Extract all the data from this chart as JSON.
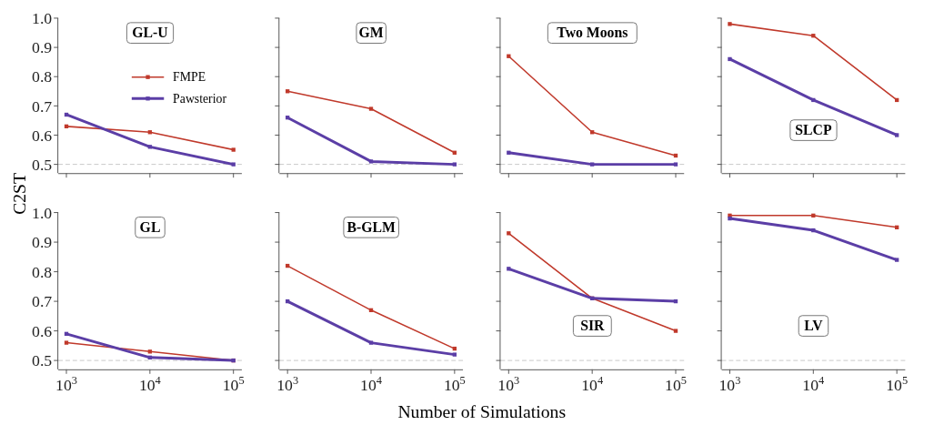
{
  "chart_data": [
    {
      "type": "line",
      "title": "GL-U",
      "ylabel": "C2ST",
      "annotations": [
        "Number of Simulations"
      ],
      "x": [
        1000,
        10000,
        100000
      ],
      "xlim": [
        800,
        126000
      ],
      "xticks": [
        {
          "value": 1000,
          "label": null
        },
        {
          "value": 10000,
          "label": null
        },
        {
          "value": 100000,
          "label": null
        }
      ],
      "ylim": [
        0.47,
        1.0
      ],
      "yticks": [
        0.5,
        0.6,
        0.7,
        0.8,
        0.9,
        {
          "value": 1.0,
          "label": "1.0"
        }
      ],
      "log": "x",
      "tick_labels": "y",
      "legend": "center",
      "marker": "square",
      "ref_lines": [
        {
          "axis": "y",
          "value": 0.5,
          "color": "#c8c8c8",
          "line_style": "dashed"
        }
      ],
      "series": [
        {
          "name": "FMPE",
          "color": "#c0392b",
          "values": [
            0.63,
            0.61,
            0.55
          ]
        },
        {
          "name": "Pawsterior",
          "color": "#5b3ea6",
          "values": [
            0.67,
            0.56,
            0.5
          ]
        }
      ]
    },
    {
      "type": "line",
      "title": "GM",
      "x": [
        1000,
        10000,
        100000
      ],
      "xlim": [
        800,
        126000
      ],
      "xticks": [
        {
          "value": 1000,
          "label": null
        },
        {
          "value": 10000,
          "label": null
        },
        {
          "value": 100000,
          "label": null
        }
      ],
      "ylim": [
        0.47,
        1.0
      ],
      "yticks": [
        0.5,
        0.6,
        0.7,
        0.8,
        0.9,
        1
      ],
      "log": "x",
      "tick_labels": false,
      "marker": "square",
      "ref_lines": [
        {
          "axis": "y",
          "value": 0.5,
          "color": "#c8c8c8",
          "line_style": "dashed"
        }
      ],
      "series": [
        {
          "color": "#c0392b",
          "values": [
            0.75,
            0.69,
            0.54
          ]
        },
        {
          "color": "#5b3ea6",
          "values": [
            0.66,
            0.51,
            0.5
          ]
        }
      ]
    },
    {
      "type": "line",
      "title": "Two Moons",
      "x": [
        1000,
        10000,
        100000
      ],
      "xlim": [
        800,
        126000
      ],
      "xticks": [
        {
          "value": 1000,
          "label": null
        },
        {
          "value": 10000,
          "label": null
        },
        {
          "value": 100000,
          "label": null
        }
      ],
      "ylim": [
        0.47,
        1.0
      ],
      "yticks": [
        0.5,
        0.6,
        0.7,
        0.8,
        0.9,
        1
      ],
      "log": "x",
      "tick_labels": false,
      "marker": "square",
      "ref_lines": [
        {
          "axis": "y",
          "value": 0.5,
          "color": "#c8c8c8",
          "line_style": "dashed"
        }
      ],
      "series": [
        {
          "color": "#c0392b",
          "values": [
            0.87,
            0.61,
            0.53
          ]
        },
        {
          "color": "#5b3ea6",
          "values": [
            0.54,
            0.5,
            0.5
          ]
        }
      ]
    },
    {
      "type": "line",
      "title": "SLCP",
      "x": [
        1000,
        10000,
        100000
      ],
      "xlim": [
        800,
        126000
      ],
      "xticks": [
        {
          "value": 1000,
          "label": null
        },
        {
          "value": 10000,
          "label": null
        },
        {
          "value": 100000,
          "label": null
        }
      ],
      "ylim": [
        0.47,
        1.0
      ],
      "yticks": [
        0.5,
        0.6,
        0.7,
        0.8,
        0.9,
        1
      ],
      "log": "x",
      "tick_labels": false,
      "marker": "square",
      "ref_lines": [
        {
          "axis": "y",
          "value": 0.5,
          "color": "#c8c8c8",
          "line_style": "dashed"
        }
      ],
      "series": [
        {
          "color": "#c0392b",
          "values": [
            0.98,
            0.94,
            0.72
          ]
        },
        {
          "color": "#5b3ea6",
          "values": [
            0.86,
            0.72,
            0.6
          ]
        }
      ]
    },
    {
      "type": "line",
      "title": "GL",
      "x": [
        1000,
        10000,
        100000
      ],
      "xlim": [
        800,
        126000
      ],
      "xticks": [
        {
          "value": 1000,
          "label": "10$^{3}$"
        },
        {
          "value": 10000,
          "label": "10$^{4}$"
        },
        {
          "value": 100000,
          "label": "10$^{5}$"
        }
      ],
      "ylim": [
        0.47,
        1.0
      ],
      "yticks": [
        0.5,
        0.6,
        0.7,
        0.8,
        0.9,
        {
          "value": 1.0,
          "label": "1.0"
        }
      ],
      "log": "x",
      "marker": "square",
      "ref_lines": [
        {
          "axis": "y",
          "value": 0.5,
          "color": "#c8c8c8",
          "line_style": "dashed"
        }
      ],
      "series": [
        {
          "color": "#c0392b",
          "values": [
            0.56,
            0.53,
            0.5
          ]
        },
        {
          "color": "#5b3ea6",
          "values": [
            0.59,
            0.51,
            0.5
          ]
        }
      ]
    },
    {
      "type": "line",
      "title": "B-GLM",
      "x": [
        1000,
        10000,
        100000
      ],
      "xlim": [
        800,
        126000
      ],
      "xticks": [
        {
          "value": 1000,
          "label": "10$^{3}$"
        },
        {
          "value": 10000,
          "label": "10$^{4}$"
        },
        {
          "value": 100000,
          "label": "10$^{5}$"
        }
      ],
      "ylim": [
        0.47,
        1.0
      ],
      "yticks": [
        0.5,
        0.6,
        0.7,
        0.8,
        0.9,
        1
      ],
      "log": "x",
      "tick_labels": "x",
      "marker": "square",
      "ref_lines": [
        {
          "axis": "y",
          "value": 0.5,
          "color": "#c8c8c8",
          "line_style": "dashed"
        }
      ],
      "series": [
        {
          "color": "#c0392b",
          "values": [
            0.82,
            0.67,
            0.54
          ]
        },
        {
          "color": "#5b3ea6",
          "values": [
            0.7,
            0.56,
            0.52
          ]
        }
      ]
    },
    {
      "type": "line",
      "title": "SIR",
      "x": [
        1000,
        10000,
        100000
      ],
      "xlim": [
        800,
        126000
      ],
      "xticks": [
        {
          "value": 1000,
          "label": "10$^{3}$"
        },
        {
          "value": 10000,
          "label": "10$^{4}$"
        },
        {
          "value": 100000,
          "label": "10$^{5}$"
        }
      ],
      "ylim": [
        0.47,
        1.0
      ],
      "yticks": [
        0.5,
        0.6,
        0.7,
        0.8,
        0.9,
        1
      ],
      "log": "x",
      "tick_labels": "x",
      "marker": "square",
      "ref_lines": [
        {
          "axis": "y",
          "value": 0.5,
          "color": "#c8c8c8",
          "line_style": "dashed"
        }
      ],
      "series": [
        {
          "color": "#c0392b",
          "values": [
            0.93,
            0.71,
            0.6
          ]
        },
        {
          "color": "#5b3ea6",
          "values": [
            0.81,
            0.71,
            0.7
          ]
        }
      ]
    },
    {
      "type": "line",
      "title": "LV",
      "x": [
        1000,
        10000,
        100000
      ],
      "xlim": [
        800,
        126000
      ],
      "xticks": [
        {
          "value": 1000,
          "label": "10$^{3}$"
        },
        {
          "value": 10000,
          "label": "10$^{4}$"
        },
        {
          "value": 100000,
          "label": "10$^{5}$"
        }
      ],
      "ylim": [
        0.47,
        1.0
      ],
      "yticks": [
        0.5,
        0.6,
        0.7,
        0.8,
        0.9,
        1
      ],
      "log": "x",
      "tick_labels": "x",
      "marker": "square",
      "ref_lines": [
        {
          "axis": "y",
          "value": 0.5,
          "color": "#c8c8c8",
          "line_style": "dashed"
        }
      ],
      "series": [
        {
          "color": "#c0392b",
          "values": [
            0.99,
            0.99,
            0.95
          ]
        },
        {
          "color": "#5b3ea6",
          "values": [
            0.98,
            0.94,
            0.84
          ]
        }
      ]
    }
  ]
}
